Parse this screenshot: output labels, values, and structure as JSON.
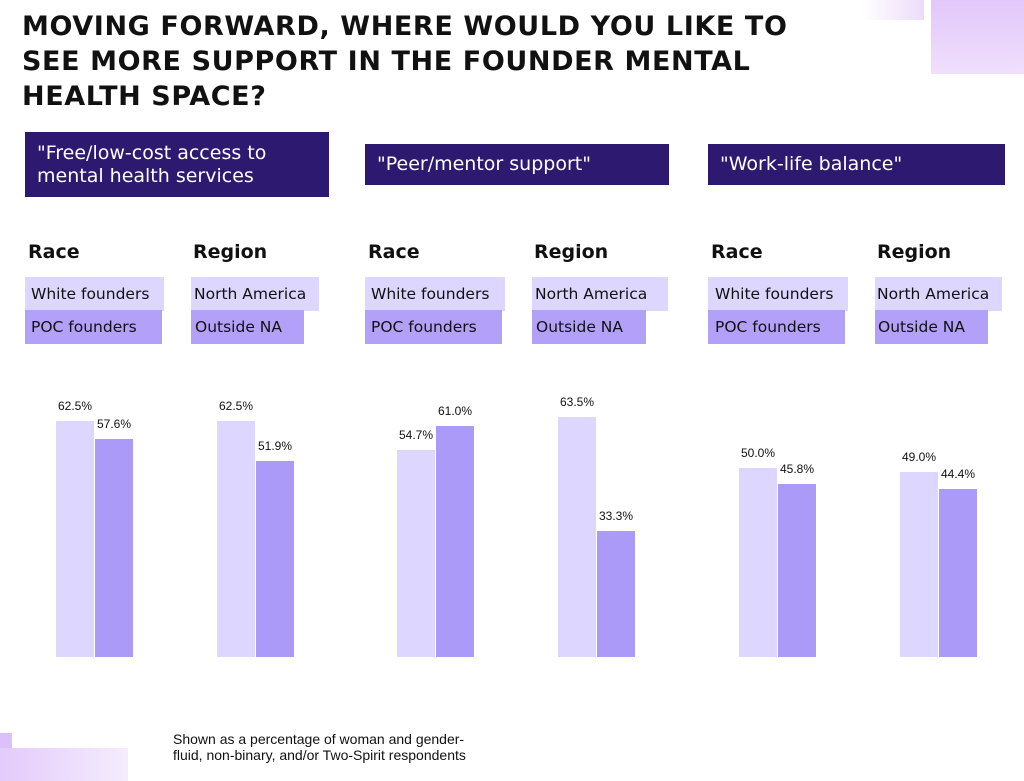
{
  "title": "MOVING FORWARD, WHERE WOULD YOU LIKE TO SEE MORE SUPPORT IN THE FOUNDER MENTAL HEALTH SPACE?",
  "colors": {
    "banner": "#2d1a70",
    "series1": "#ddd6fe",
    "series2": "#ac9af8"
  },
  "groups": [
    {
      "label": "\"Free/low-cost access to mental health services",
      "race": {
        "header": "Race",
        "legend1": "White founders",
        "legend2": "POC founders"
      },
      "region": {
        "header": "Region",
        "legend1": "North America",
        "legend2": "Outside NA"
      }
    },
    {
      "label": "\"Peer/mentor support\"",
      "race": {
        "header": "Race",
        "legend1": "White founders",
        "legend2": "POC founders"
      },
      "region": {
        "header": "Region",
        "legend1": "North America",
        "legend2": "Outside NA"
      }
    },
    {
      "label": "\"Work-life balance\"",
      "race": {
        "header": "Race",
        "legend1": "White founders",
        "legend2": "POC founders"
      },
      "region": {
        "header": "Region",
        "legend1": "North America",
        "legend2": "Outside NA"
      }
    }
  ],
  "chart_data": {
    "type": "bar",
    "title": "MOVING FORWARD, WHERE WOULD YOU LIKE TO SEE MORE SUPPORT IN THE FOUNDER MENTAL HEALTH SPACE?",
    "unit": "%",
    "categories": [
      "Free/low-cost access – Race",
      "Free/low-cost access – Region",
      "Peer/mentor support – Race",
      "Peer/mentor support – Region",
      "Work-life balance – Race",
      "Work-life balance – Region"
    ],
    "series": [
      {
        "name": "White founders / North America",
        "values": [
          62.5,
          62.5,
          54.7,
          63.5,
          50.0,
          49.0
        ]
      },
      {
        "name": "POC founders / Outside NA",
        "values": [
          57.6,
          51.9,
          61.0,
          33.3,
          45.8,
          44.4
        ]
      }
    ],
    "labels": [
      [
        "62.5%",
        "57.6%"
      ],
      [
        "62.5%",
        "51.9%"
      ],
      [
        "54.7%",
        "61.0%"
      ],
      [
        "63.5%",
        "33.3%"
      ],
      [
        "50.0%",
        "45.8%"
      ],
      [
        "49.0%",
        "44.4%"
      ]
    ],
    "ylim": [
      0,
      100
    ],
    "gridlines": false,
    "footnote": "Shown as a percentage of woman and gender-fluid, non-binary, and/or Two-Spirit respondents"
  }
}
